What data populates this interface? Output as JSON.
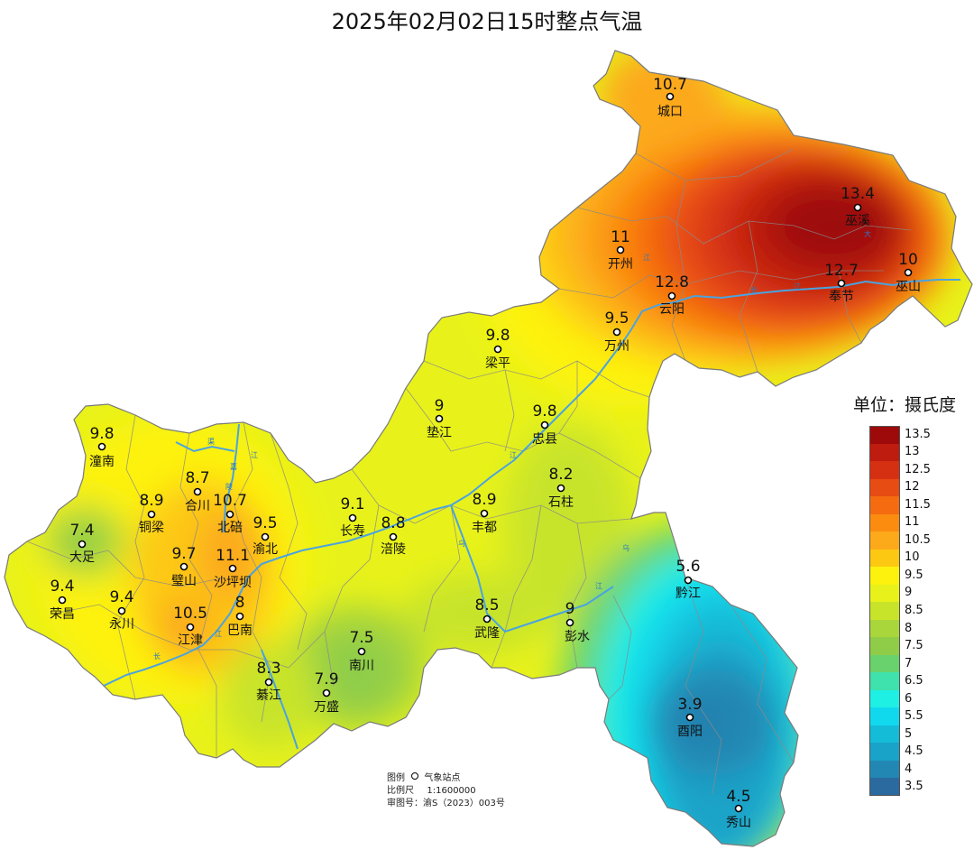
{
  "title": "2025年02月02日15时整点气温",
  "legend": {
    "title": "单位：摄氏度",
    "items": [
      {
        "label": "13.5",
        "color": "#9e0a0a"
      },
      {
        "label": "13",
        "color": "#bd1c0f"
      },
      {
        "label": "12.5",
        "color": "#d63012"
      },
      {
        "label": "12",
        "color": "#e74c12"
      },
      {
        "label": "11.5",
        "color": "#f56c10"
      },
      {
        "label": "11",
        "color": "#fb8c10"
      },
      {
        "label": "10.5",
        "color": "#fca91a"
      },
      {
        "label": "10",
        "color": "#fdc812"
      },
      {
        "label": "9.5",
        "color": "#fdf20e"
      },
      {
        "label": "9",
        "color": "#e8f21a"
      },
      {
        "label": "8.5",
        "color": "#c8e42a"
      },
      {
        "label": "8",
        "color": "#a9d63a"
      },
      {
        "label": "7.5",
        "color": "#8fcd48"
      },
      {
        "label": "7",
        "color": "#6ad26c"
      },
      {
        "label": "6.5",
        "color": "#3fe1ad"
      },
      {
        "label": "6",
        "color": "#1ff0e4"
      },
      {
        "label": "5.5",
        "color": "#10d9ee"
      },
      {
        "label": "5",
        "color": "#14bcd8"
      },
      {
        "label": "4.5",
        "color": "#1aa3c8"
      },
      {
        "label": "4",
        "color": "#2387b3"
      },
      {
        "label": "3.5",
        "color": "#2b6a9e"
      }
    ]
  },
  "stations": [
    {
      "name": "城口",
      "value": "10.7"
    },
    {
      "name": "巫溪",
      "value": "13.4"
    },
    {
      "name": "开州",
      "value": "11"
    },
    {
      "name": "巫山",
      "value": "10"
    },
    {
      "name": "云阳",
      "value": "12.8"
    },
    {
      "name": "奉节",
      "value": "12.7"
    },
    {
      "name": "万州",
      "value": "9.5"
    },
    {
      "name": "梁平",
      "value": "9.8"
    },
    {
      "name": "垫江",
      "value": "9"
    },
    {
      "name": "忠县",
      "value": "9.8"
    },
    {
      "name": "潼南",
      "value": "9.8"
    },
    {
      "name": "合川",
      "value": "8.7"
    },
    {
      "name": "铜梁",
      "value": "8.9"
    },
    {
      "name": "北碚",
      "value": "10.7"
    },
    {
      "name": "渝北",
      "value": "9.5"
    },
    {
      "name": "长寿",
      "value": "9.1"
    },
    {
      "name": "石柱",
      "value": "8.2"
    },
    {
      "name": "丰都",
      "value": "8.9"
    },
    {
      "name": "涪陵",
      "value": "8.8"
    },
    {
      "name": "大足",
      "value": "7.4"
    },
    {
      "name": "璧山",
      "value": "9.7"
    },
    {
      "name": "沙坪坝",
      "value": "11.1"
    },
    {
      "name": "黔江",
      "value": "5.6"
    },
    {
      "name": "荣昌",
      "value": "9.4"
    },
    {
      "name": "永川",
      "value": "9.4"
    },
    {
      "name": "巴南",
      "value": "8"
    },
    {
      "name": "江津",
      "value": "10.5"
    },
    {
      "name": "武隆",
      "value": "8.5"
    },
    {
      "name": "彭水",
      "value": "9"
    },
    {
      "name": "南川",
      "value": "7.5"
    },
    {
      "name": "綦江",
      "value": "8.3"
    },
    {
      "name": "万盛",
      "value": "7.9"
    },
    {
      "name": "酉阳",
      "value": "3.9"
    },
    {
      "name": "秀山",
      "value": "4.5"
    }
  ],
  "notes": {
    "legend_label": "图例",
    "station_label": "气象站点",
    "scale_label": "比例尺",
    "scale_value": "1:1600000",
    "review_label": "审图号：",
    "review_value": "渝S（2023）003号"
  }
}
